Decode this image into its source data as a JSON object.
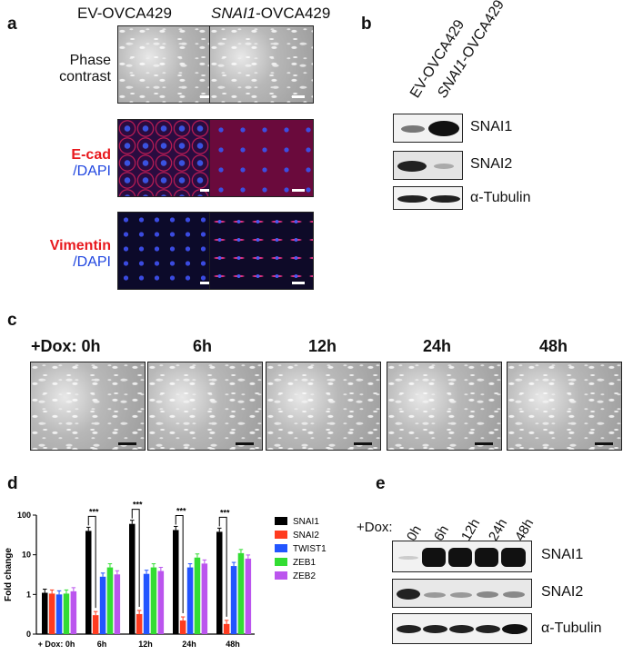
{
  "panel_a": {
    "label": "a",
    "col1": "EV-OVCA429",
    "col2_italic": "SNAI1",
    "col2_rest": "-OVCA429",
    "row1": [
      "Phase",
      "contrast"
    ],
    "row2_red": "E-cad",
    "row2_blue": "/DAPI",
    "row3_red": "Vimentin",
    "row3_blue": "/DAPI"
  },
  "panel_b": {
    "label": "b",
    "lane1": "EV-OVCA429",
    "lane2_italic": "SNAI1",
    "lane2_rest": "-OVCA429",
    "rows": [
      "SNAI1",
      "SNAI2",
      "α-Tubulin"
    ]
  },
  "panel_c": {
    "label": "c",
    "times": [
      "+Dox: 0h",
      "6h",
      "12h",
      "24h",
      "48h"
    ]
  },
  "panel_d": {
    "label": "d",
    "ylabel": "Fold change",
    "xprefix": "+ Dox:",
    "sig": "***",
    "yticks": [
      "100",
      "10",
      "1",
      "0"
    ],
    "colors": {
      "SNAI1": "#000000",
      "SNAI2": "#ff3b1f",
      "TWIST1": "#2255ff",
      "ZEB1": "#33dd33",
      "ZEB2": "#bb55ee"
    }
  },
  "chart_data": {
    "type": "bar",
    "categories": [
      "0h",
      "6h",
      "12h",
      "24h",
      "48h"
    ],
    "yscale": "log",
    "ylabel": "Fold change",
    "series": [
      {
        "name": "SNAI1",
        "values": [
          1.1,
          40,
          60,
          42,
          38
        ]
      },
      {
        "name": "SNAI2",
        "values": [
          1.05,
          0.3,
          0.32,
          0.22,
          0.18
        ]
      },
      {
        "name": "TWIST1",
        "values": [
          1.0,
          2.8,
          3.3,
          4.8,
          5.2
        ]
      },
      {
        "name": "ZEB1",
        "values": [
          1.05,
          4.8,
          4.8,
          8.5,
          11
        ]
      },
      {
        "name": "ZEB2",
        "values": [
          1.2,
          3.2,
          3.9,
          6.0,
          8.0
        ]
      }
    ]
  },
  "panel_e": {
    "label": "e",
    "prefix": "+Dox:",
    "lanes": [
      "0h",
      "6h",
      "12h",
      "24h",
      "48h"
    ],
    "rows": [
      "SNAI1",
      "SNAI2",
      "α-Tubulin"
    ]
  }
}
